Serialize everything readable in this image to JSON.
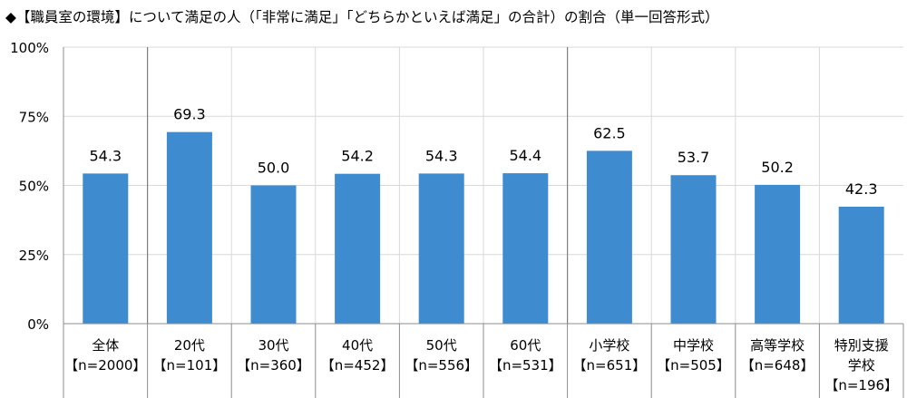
{
  "chart_data": {
    "type": "bar",
    "title": "◆【職員室の環境】について満足の人（「非常に満足」「どちらかといえば満足」の合計）の割合（単一回答形式）",
    "categories": [
      [
        "全体",
        "【n=2000】"
      ],
      [
        "20代",
        "【n=101】"
      ],
      [
        "30代",
        "【n=360】"
      ],
      [
        "40代",
        "【n=452】"
      ],
      [
        "50代",
        "【n=556】"
      ],
      [
        "60代",
        "【n=531】"
      ],
      [
        "小学校",
        "【n=651】"
      ],
      [
        "中学校",
        "【n=505】"
      ],
      [
        "高等学校",
        "【n=648】"
      ],
      [
        "特別支援",
        "学校",
        "【n=196】"
      ]
    ],
    "values": [
      54.3,
      69.3,
      50.0,
      54.2,
      54.3,
      54.4,
      62.5,
      53.7,
      50.2,
      42.3
    ],
    "value_labels": [
      "54.3",
      "69.3",
      "50.0",
      "54.2",
      "54.3",
      "54.4",
      "62.5",
      "53.7",
      "50.2",
      "42.3"
    ],
    "ylim": [
      0,
      100
    ],
    "yticks": [
      0,
      25,
      50,
      75,
      100
    ],
    "ytick_labels": [
      "0%",
      "25%",
      "50%",
      "75%",
      "100%"
    ],
    "group_separators_after": [
      0,
      5
    ],
    "grid": true,
    "xlabel": "",
    "ylabel": "",
    "bar_color": "#3e8ccf"
  }
}
